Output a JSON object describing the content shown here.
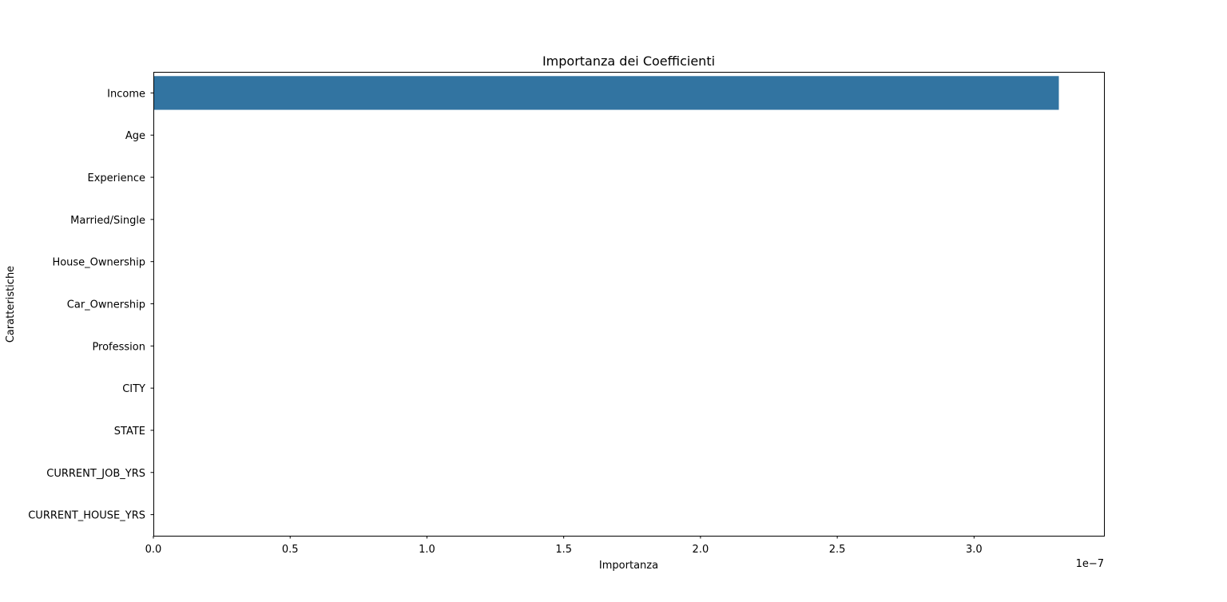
{
  "chart_data": {
    "type": "bar",
    "orientation": "horizontal",
    "title": "Importanza dei Coefficienti",
    "xlabel": "Importanza",
    "ylabel": "Caratteristiche",
    "x_offset_label": "1e−7",
    "categories": [
      "Income",
      "Age",
      "Experience",
      "Married/Single",
      "House_Ownership",
      "Car_Ownership",
      "Profession",
      "CITY",
      "STATE",
      "CURRENT_JOB_YRS",
      "CURRENT_HOUSE_YRS"
    ],
    "values": [
      3.31e-07,
      0,
      0,
      0,
      0,
      0,
      0,
      0,
      0,
      0,
      0
    ],
    "xlim": [
      0,
      3.475e-07
    ],
    "xticks": [
      0,
      5e-08,
      1e-07,
      1.5e-07,
      2e-07,
      2.5e-07,
      3e-07
    ],
    "xtick_labels": [
      "0.0",
      "0.5",
      "1.0",
      "1.5",
      "2.0",
      "2.5",
      "3.0"
    ],
    "bar_color": "#3274a1",
    "grid": false
  }
}
